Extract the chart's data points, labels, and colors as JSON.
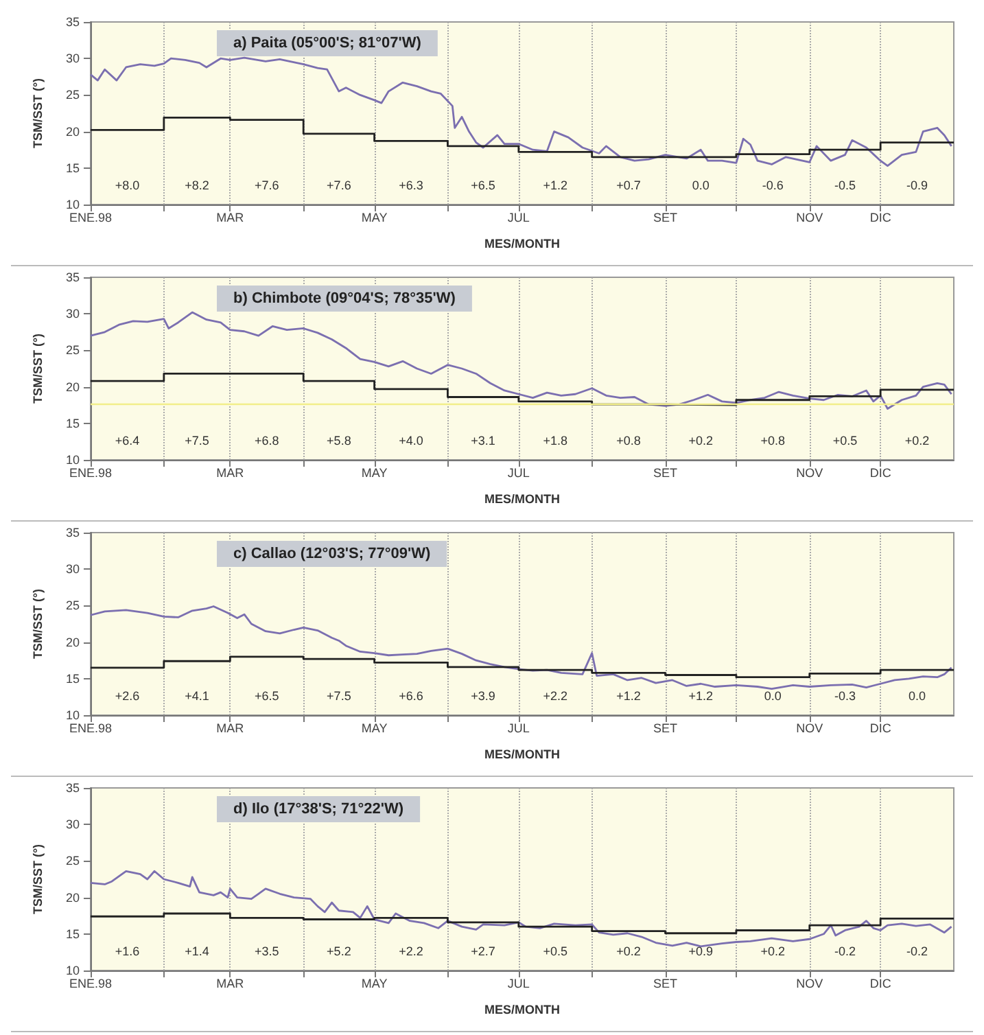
{
  "chart_data": [
    {
      "type": "line",
      "title": "a) Paita (05°00'S; 81°07'W)",
      "xlabel": "MES/MONTH",
      "ylabel": "TSM/SST (°)",
      "xlim": [
        "1998-01-01",
        "1999-01-01"
      ],
      "ylim": [
        10,
        35
      ],
      "yticks": [
        10,
        15,
        20,
        25,
        30,
        35
      ],
      "xticks": [
        {
          "value": "1998-01-01",
          "label": "ENE.98"
        },
        {
          "value": "1998-02-01",
          "label": null
        },
        {
          "value": "1998-03-01",
          "label": "MAR"
        },
        {
          "value": "1998-04-01",
          "label": null
        },
        {
          "value": "1998-05-01",
          "label": "MAY"
        },
        {
          "value": "1998-06-01",
          "label": null
        },
        {
          "value": "1998-07-01",
          "label": "JUL"
        },
        {
          "value": "1998-08-01",
          "label": null
        },
        {
          "value": "1998-09-01",
          "label": "SET"
        },
        {
          "value": "1998-10-01",
          "label": null
        },
        {
          "value": "1998-11-01",
          "label": "NOV"
        },
        {
          "value": "1998-12-01",
          "label": "DIC"
        }
      ],
      "grid": "x",
      "series": [
        {
          "color": "#7b6fb0",
          "x": [
            "1998-01-01",
            "1998-01-04",
            "1998-01-07",
            "1998-01-12",
            "1998-01-16",
            "1998-01-22",
            "1998-01-28",
            "1998-02-01",
            "1998-02-04",
            "1998-02-10",
            "1998-02-16",
            "1998-02-19",
            "1998-02-25",
            "1998-03-01",
            "1998-03-07",
            "1998-03-16",
            "1998-03-22",
            "1998-04-01",
            "1998-04-07",
            "1998-04-11",
            "1998-04-16",
            "1998-04-19",
            "1998-04-25",
            "1998-05-01",
            "1998-05-04",
            "1998-05-07",
            "1998-05-13",
            "1998-05-19",
            "1998-05-25",
            "1998-05-29",
            "1998-06-03",
            "1998-06-04",
            "1998-06-07",
            "1998-06-10",
            "1998-06-13",
            "1998-06-16",
            "1998-06-22",
            "1998-06-25",
            "1998-07-01",
            "1998-07-07",
            "1998-07-13",
            "1998-07-16",
            "1998-07-22",
            "1998-07-28",
            "1998-08-04",
            "1998-08-07",
            "1998-08-13",
            "1998-08-19",
            "1998-08-25",
            "1998-09-01",
            "1998-09-10",
            "1998-09-16",
            "1998-09-19",
            "1998-09-25",
            "1998-10-01",
            "1998-10-04",
            "1998-10-07",
            "1998-10-10",
            "1998-10-16",
            "1998-10-22",
            "1998-11-01",
            "1998-11-04",
            "1998-11-10",
            "1998-11-16",
            "1998-11-19",
            "1998-11-25",
            "1998-12-01",
            "1998-12-04",
            "1998-12-10",
            "1998-12-16",
            "1998-12-19",
            "1998-12-25",
            "1998-12-28",
            "1998-12-31"
          ],
          "values": [
            27.8,
            27.0,
            28.5,
            27.0,
            28.8,
            29.2,
            29.0,
            29.3,
            30.0,
            29.8,
            29.4,
            28.8,
            30.0,
            29.8,
            30.1,
            29.6,
            29.9,
            29.2,
            28.7,
            28.5,
            25.5,
            26.0,
            25.0,
            24.3,
            23.9,
            25.5,
            26.7,
            26.2,
            25.5,
            25.2,
            23.5,
            20.5,
            22.0,
            20.0,
            18.5,
            17.8,
            19.5,
            18.3,
            18.3,
            17.5,
            17.3,
            20.0,
            19.2,
            17.8,
            17.0,
            18.0,
            16.5,
            16.0,
            16.2,
            16.8,
            16.3,
            17.5,
            16.0,
            16.0,
            15.7,
            19.0,
            18.2,
            16.0,
            15.5,
            16.5,
            15.8,
            18.0,
            16.0,
            16.8,
            18.8,
            17.8,
            16.0,
            15.3,
            16.8,
            17.2,
            20.0,
            20.5,
            19.5,
            18.0
          ]
        },
        {
          "type": "step",
          "color": "#222222",
          "x": [
            "1998-01-01",
            "1998-02-01",
            "1998-03-01",
            "1998-04-01",
            "1998-05-01",
            "1998-06-01",
            "1998-07-01",
            "1998-08-01",
            "1998-09-01",
            "1998-10-01",
            "1998-11-01",
            "1998-12-01",
            "1999-01-01"
          ],
          "values": [
            20.2,
            21.9,
            21.6,
            19.7,
            18.7,
            18.0,
            17.2,
            16.5,
            16.5,
            16.9,
            17.5,
            18.5,
            18.5
          ]
        }
      ],
      "annotations": [
        "+8.0",
        "+8.2",
        "+7.6",
        "+7.6",
        "+6.3",
        "+6.5",
        "+1.2",
        "+0.7",
        "0.0",
        "-0.6",
        "-0.5",
        "-0.9"
      ]
    },
    {
      "type": "line",
      "title": "b) Chimbote (09°04'S; 78°35'W)",
      "xlabel": "MES/MONTH",
      "ylabel": "TSM/SST (°)",
      "xlim": [
        "1998-01-01",
        "1999-01-01"
      ],
      "ylim": [
        10,
        35
      ],
      "yticks": [
        10,
        15,
        20,
        25,
        30,
        35
      ],
      "xticks": [
        {
          "value": "1998-01-01",
          "label": "ENE.98"
        },
        {
          "value": "1998-02-01",
          "label": null
        },
        {
          "value": "1998-03-01",
          "label": "MAR"
        },
        {
          "value": "1998-04-01",
          "label": null
        },
        {
          "value": "1998-05-01",
          "label": "MAY"
        },
        {
          "value": "1998-06-01",
          "label": null
        },
        {
          "value": "1998-07-01",
          "label": "JUL"
        },
        {
          "value": "1998-08-01",
          "label": null
        },
        {
          "value": "1998-09-01",
          "label": "SET"
        },
        {
          "value": "1998-10-01",
          "label": null
        },
        {
          "value": "1998-11-01",
          "label": "NOV"
        },
        {
          "value": "1998-12-01",
          "label": "DIC"
        }
      ],
      "grid": "x",
      "series": [
        {
          "color": "#7b6fb0",
          "x": [
            "1998-01-01",
            "1998-01-07",
            "1998-01-13",
            "1998-01-19",
            "1998-01-25",
            "1998-02-01",
            "1998-02-03",
            "1998-02-07",
            "1998-02-13",
            "1998-02-19",
            "1998-02-25",
            "1998-03-01",
            "1998-03-07",
            "1998-03-13",
            "1998-03-19",
            "1998-03-25",
            "1998-04-01",
            "1998-04-07",
            "1998-04-13",
            "1998-04-19",
            "1998-04-25",
            "1998-05-01",
            "1998-05-07",
            "1998-05-13",
            "1998-05-19",
            "1998-05-25",
            "1998-06-01",
            "1998-06-07",
            "1998-06-13",
            "1998-06-19",
            "1998-06-25",
            "1998-07-01",
            "1998-07-07",
            "1998-07-13",
            "1998-07-19",
            "1998-07-25",
            "1998-08-01",
            "1998-08-07",
            "1998-08-13",
            "1998-08-19",
            "1998-08-25",
            "1998-09-01",
            "1998-09-07",
            "1998-09-13",
            "1998-09-19",
            "1998-09-25",
            "1998-10-01",
            "1998-10-07",
            "1998-10-13",
            "1998-10-19",
            "1998-10-25",
            "1998-11-01",
            "1998-11-07",
            "1998-11-13",
            "1998-11-19",
            "1998-11-25",
            "1998-11-28",
            "1998-12-01",
            "1998-12-04",
            "1998-12-10",
            "1998-12-16",
            "1998-12-19",
            "1998-12-25",
            "1998-12-28",
            "1998-12-31"
          ],
          "values": [
            27.0,
            27.5,
            28.5,
            29.0,
            28.9,
            29.3,
            28.0,
            28.8,
            30.2,
            29.2,
            28.8,
            27.8,
            27.6,
            27.0,
            28.3,
            27.8,
            28.0,
            27.4,
            26.5,
            25.3,
            23.8,
            23.4,
            22.8,
            23.5,
            22.5,
            21.8,
            23.0,
            22.5,
            21.8,
            20.5,
            19.5,
            19.0,
            18.5,
            19.2,
            18.8,
            19.0,
            19.8,
            18.8,
            18.5,
            18.6,
            17.6,
            17.4,
            17.6,
            18.2,
            18.9,
            18.0,
            17.8,
            18.2,
            18.5,
            19.3,
            18.8,
            18.4,
            18.2,
            18.9,
            18.7,
            19.5,
            18.0,
            18.8,
            17.0,
            18.2,
            18.8,
            20.0,
            20.5,
            20.3,
            19.0
          ]
        },
        {
          "type": "step",
          "color": "#222222",
          "x": [
            "1998-01-01",
            "1998-02-01",
            "1998-03-01",
            "1998-04-01",
            "1998-05-01",
            "1998-06-01",
            "1998-07-01",
            "1998-08-01",
            "1998-09-01",
            "1998-10-01",
            "1998-11-01",
            "1998-12-01",
            "1999-01-01"
          ],
          "values": [
            20.8,
            21.8,
            21.8,
            20.8,
            19.7,
            18.6,
            18.0,
            17.6,
            17.5,
            18.2,
            18.7,
            19.6,
            19.6
          ]
        }
      ],
      "ref_lines": [
        {
          "axis": "y",
          "value": 17.6,
          "label": null,
          "color": "#f2ee8a"
        }
      ],
      "annotations": [
        "+6.4",
        "+7.5",
        "+6.8",
        "+5.8",
        "+4.0",
        "+3.1",
        "+1.8",
        "+0.8",
        "+0.2",
        "+0.8",
        "+0.5",
        "+0.2"
      ]
    },
    {
      "type": "line",
      "title": "c) Callao (12°03'S; 77°09'W)",
      "xlabel": "MES/MONTH",
      "ylabel": "TSM/SST (°)",
      "xlim": [
        "1998-01-01",
        "1999-01-01"
      ],
      "ylim": [
        10,
        35
      ],
      "yticks": [
        10,
        15,
        20,
        25,
        30,
        35
      ],
      "xticks": [
        {
          "value": "1998-01-01",
          "label": "ENE.98"
        },
        {
          "value": "1998-02-01",
          "label": null
        },
        {
          "value": "1998-03-01",
          "label": "MAR"
        },
        {
          "value": "1998-04-01",
          "label": null
        },
        {
          "value": "1998-05-01",
          "label": "MAY"
        },
        {
          "value": "1998-06-01",
          "label": null
        },
        {
          "value": "1998-07-01",
          "label": "JUL"
        },
        {
          "value": "1998-08-01",
          "label": null
        },
        {
          "value": "1998-09-01",
          "label": "SET"
        },
        {
          "value": "1998-10-01",
          "label": null
        },
        {
          "value": "1998-11-01",
          "label": "NOV"
        },
        {
          "value": "1998-12-01",
          "label": "DIC"
        }
      ],
      "grid": "x",
      "series": [
        {
          "color": "#7b6fb0",
          "x": [
            "1998-01-01",
            "1998-01-07",
            "1998-01-16",
            "1998-01-25",
            "1998-02-01",
            "1998-02-07",
            "1998-02-13",
            "1998-02-19",
            "1998-02-22",
            "1998-02-28",
            "1998-03-04",
            "1998-03-07",
            "1998-03-10",
            "1998-03-16",
            "1998-03-22",
            "1998-03-28",
            "1998-04-01",
            "1998-04-07",
            "1998-04-13",
            "1998-04-16",
            "1998-04-19",
            "1998-04-25",
            "1998-05-01",
            "1998-05-07",
            "1998-05-13",
            "1998-05-19",
            "1998-05-25",
            "1998-06-01",
            "1998-06-07",
            "1998-06-13",
            "1998-06-19",
            "1998-06-25",
            "1998-07-01",
            "1998-07-07",
            "1998-07-13",
            "1998-07-19",
            "1998-07-28",
            "1998-08-01",
            "1998-08-03",
            "1998-08-10",
            "1998-08-16",
            "1998-08-22",
            "1998-08-28",
            "1998-09-04",
            "1998-09-10",
            "1998-09-16",
            "1998-09-22",
            "1998-10-01",
            "1998-10-10",
            "1998-10-16",
            "1998-10-25",
            "1998-11-01",
            "1998-11-10",
            "1998-11-19",
            "1998-11-25",
            "1998-12-01",
            "1998-12-07",
            "1998-12-13",
            "1998-12-19",
            "1998-12-25",
            "1998-12-28",
            "1998-12-31"
          ],
          "values": [
            23.7,
            24.2,
            24.4,
            24.0,
            23.5,
            23.4,
            24.3,
            24.6,
            24.9,
            24.0,
            23.3,
            23.8,
            22.5,
            21.5,
            21.2,
            21.7,
            22.0,
            21.6,
            20.6,
            20.2,
            19.5,
            18.7,
            18.5,
            18.2,
            18.3,
            18.4,
            18.8,
            19.1,
            18.4,
            17.5,
            17.0,
            16.6,
            16.3,
            16.1,
            16.2,
            15.8,
            15.6,
            18.5,
            15.4,
            15.6,
            14.8,
            15.1,
            14.4,
            14.8,
            14.0,
            14.3,
            13.9,
            14.1,
            13.9,
            13.6,
            14.1,
            13.9,
            14.1,
            14.2,
            13.8,
            14.3,
            14.8,
            15.0,
            15.3,
            15.2,
            15.6,
            16.5
          ]
        },
        {
          "type": "step",
          "color": "#222222",
          "x": [
            "1998-01-01",
            "1998-02-01",
            "1998-03-01",
            "1998-04-01",
            "1998-05-01",
            "1998-06-01",
            "1998-07-01",
            "1998-08-01",
            "1998-09-01",
            "1998-10-01",
            "1998-11-01",
            "1998-12-01",
            "1999-01-01"
          ],
          "values": [
            16.5,
            17.4,
            18.0,
            17.7,
            17.2,
            16.6,
            16.2,
            15.8,
            15.5,
            15.2,
            15.7,
            16.2,
            16.2
          ]
        }
      ],
      "annotations": [
        "+2.6",
        "+4.1",
        "+6.5",
        "+7.5",
        "+6.6",
        "+3.9",
        "+2.2",
        "+1.2",
        "+1.2",
        "0.0",
        "-0.3",
        "0.0"
      ]
    },
    {
      "type": "line",
      "title": "d) Ilo (17°38'S; 71°22'W)",
      "xlabel": "MES/MONTH",
      "ylabel": "TSM/SST (°)",
      "xlim": [
        "1998-01-01",
        "1999-01-01"
      ],
      "ylim": [
        10,
        35
      ],
      "yticks": [
        10,
        15,
        20,
        25,
        30,
        35
      ],
      "xticks": [
        {
          "value": "1998-01-01",
          "label": "ENE.98"
        },
        {
          "value": "1998-02-01",
          "label": null
        },
        {
          "value": "1998-03-01",
          "label": "MAR"
        },
        {
          "value": "1998-04-01",
          "label": null
        },
        {
          "value": "1998-05-01",
          "label": "MAY"
        },
        {
          "value": "1998-06-01",
          "label": null
        },
        {
          "value": "1998-07-01",
          "label": "JUL"
        },
        {
          "value": "1998-08-01",
          "label": null
        },
        {
          "value": "1998-09-01",
          "label": "SET"
        },
        {
          "value": "1998-10-01",
          "label": null
        },
        {
          "value": "1998-11-01",
          "label": "NOV"
        },
        {
          "value": "1998-12-01",
          "label": "DIC"
        }
      ],
      "grid": "x",
      "series": [
        {
          "color": "#7b6fb0",
          "x": [
            "1998-01-01",
            "1998-01-07",
            "1998-01-10",
            "1998-01-16",
            "1998-01-22",
            "1998-01-25",
            "1998-01-28",
            "1998-02-01",
            "1998-02-07",
            "1998-02-12",
            "1998-02-13",
            "1998-02-16",
            "1998-02-22",
            "1998-02-25",
            "1998-02-28",
            "1998-03-01",
            "1998-03-04",
            "1998-03-10",
            "1998-03-13",
            "1998-03-16",
            "1998-03-22",
            "1998-03-28",
            "1998-04-04",
            "1998-04-07",
            "1998-04-10",
            "1998-04-13",
            "1998-04-16",
            "1998-04-22",
            "1998-04-25",
            "1998-04-28",
            "1998-05-01",
            "1998-05-07",
            "1998-05-10",
            "1998-05-16",
            "1998-05-22",
            "1998-05-28",
            "1998-06-01",
            "1998-06-07",
            "1998-06-13",
            "1998-06-16",
            "1998-06-25",
            "1998-07-01",
            "1998-07-04",
            "1998-07-10",
            "1998-07-16",
            "1998-07-25",
            "1998-08-01",
            "1998-08-04",
            "1998-08-10",
            "1998-08-16",
            "1998-08-22",
            "1998-08-28",
            "1998-09-04",
            "1998-09-10",
            "1998-09-16",
            "1998-09-25",
            "1998-10-01",
            "1998-10-07",
            "1998-10-16",
            "1998-10-25",
            "1998-11-01",
            "1998-11-07",
            "1998-11-10",
            "1998-11-12",
            "1998-11-16",
            "1998-11-22",
            "1998-11-25",
            "1998-11-28",
            "1998-12-01",
            "1998-12-04",
            "1998-12-10",
            "1998-12-16",
            "1998-12-22",
            "1998-12-28",
            "1998-12-31"
          ],
          "values": [
            22.0,
            21.8,
            22.2,
            23.6,
            23.2,
            22.5,
            23.6,
            22.5,
            22.0,
            21.5,
            22.8,
            20.7,
            20.3,
            20.7,
            20.0,
            21.2,
            20.0,
            19.8,
            20.5,
            21.2,
            20.5,
            20.0,
            19.8,
            18.8,
            18.0,
            19.3,
            18.2,
            18.0,
            17.2,
            18.8,
            17.0,
            16.5,
            17.8,
            16.8,
            16.5,
            15.8,
            16.8,
            16.0,
            15.6,
            16.3,
            16.2,
            16.6,
            16.0,
            15.8,
            16.4,
            16.2,
            16.3,
            15.2,
            14.9,
            15.1,
            14.6,
            13.8,
            13.4,
            13.8,
            13.3,
            13.7,
            13.9,
            14.0,
            14.4,
            14.0,
            14.3,
            15.0,
            16.2,
            14.8,
            15.5,
            16.0,
            16.8,
            15.8,
            15.5,
            16.2,
            16.4,
            16.1,
            16.3,
            15.2,
            16.0
          ]
        },
        {
          "type": "step",
          "color": "#222222",
          "x": [
            "1998-01-01",
            "1998-02-01",
            "1998-03-01",
            "1998-04-01",
            "1998-05-01",
            "1998-06-01",
            "1998-07-01",
            "1998-08-01",
            "1998-09-01",
            "1998-10-01",
            "1998-11-01",
            "1998-12-01",
            "1999-01-01"
          ],
          "values": [
            17.4,
            17.8,
            17.2,
            17.0,
            17.2,
            16.6,
            16.0,
            15.4,
            15.1,
            15.5,
            16.2,
            17.1,
            17.1
          ]
        }
      ],
      "annotations": [
        "+1.6",
        "+1.4",
        "+3.5",
        "+5.2",
        "+2.2",
        "+2.7",
        "+0.5",
        "+0.2",
        "+0.9",
        "+0.2",
        "-0.2",
        "-0.2"
      ]
    }
  ]
}
